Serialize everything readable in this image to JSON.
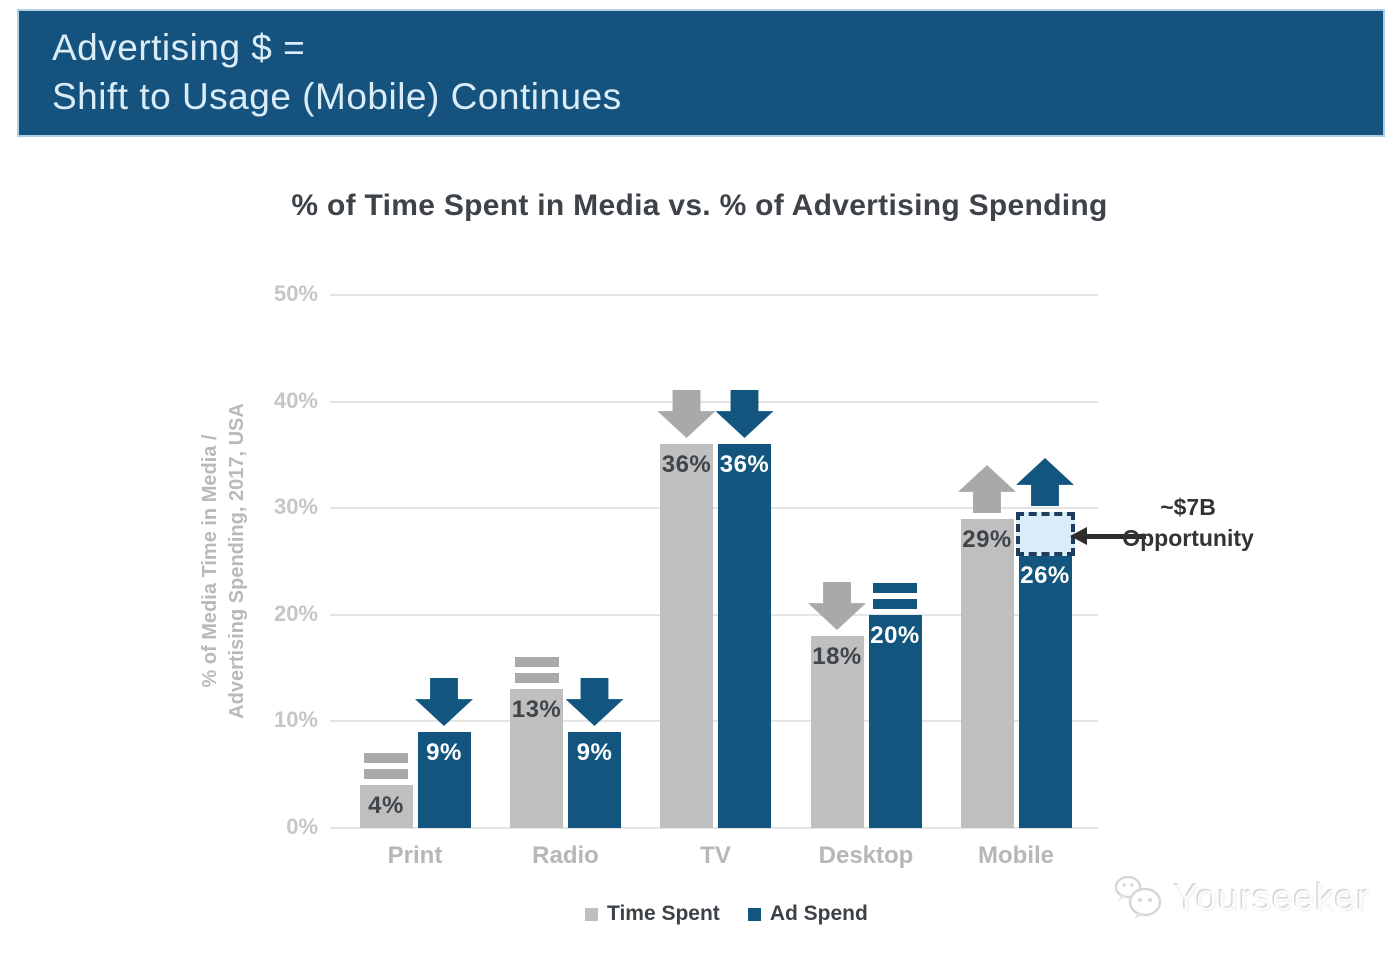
{
  "banner": {
    "line1": "Advertising $ =",
    "line2": "Shift to Usage (Mobile) Continues",
    "bg_color": "#15537e",
    "text_color": "#d9ecf7"
  },
  "chart_data": {
    "type": "bar",
    "title": "% of Time Spent in Media vs. % of Advertising Spending",
    "ylabel": "% of Media Time in Media / Advertising Spending, 2017, USA",
    "ylabel_line1": "% of Media Time in Media /",
    "ylabel_line2": "Advertising Spending, 2017, USA",
    "categories": [
      "Print",
      "Radio",
      "TV",
      "Desktop",
      "Mobile"
    ],
    "series": [
      {
        "name": "Time Spent",
        "color": "#bfbfbf",
        "marker_color": "#a9a9a9",
        "label_color": "#3f454b",
        "values": [
          4,
          13,
          36,
          18,
          29
        ],
        "value_labels": [
          "4%",
          "13%",
          "36%",
          "18%",
          "29%"
        ],
        "trend_markers": [
          "equals",
          "equals",
          "down",
          "down",
          "up"
        ]
      },
      {
        "name": "Ad Spend",
        "color": "#12567f",
        "marker_color": "#12567f",
        "label_color": "#ffffff",
        "values": [
          9,
          9,
          36,
          20,
          26
        ],
        "value_labels": [
          "9%",
          "9%",
          "36%",
          "20%",
          "26%"
        ],
        "trend_markers": [
          "down",
          "down",
          "down",
          "equals",
          "up"
        ]
      }
    ],
    "ytick_labels": [
      "50%",
      "40%",
      "30%",
      "20%",
      "10%",
      "0%"
    ],
    "ytick_values": [
      50,
      40,
      30,
      20,
      10,
      0
    ],
    "ylim": [
      0,
      50
    ],
    "grid": true,
    "legend_position": "bottom",
    "opportunity": {
      "line1": "~$7B",
      "line2": "Opportunity",
      "category": "Mobile",
      "series": "Ad Spend",
      "category_index": 4,
      "series_index": 1,
      "span_pct": [
        26,
        29.6
      ],
      "box_fill": "#d9ecf8",
      "box_border": "#1d3d5d"
    }
  },
  "watermark": {
    "text": "Yourseeker"
  }
}
